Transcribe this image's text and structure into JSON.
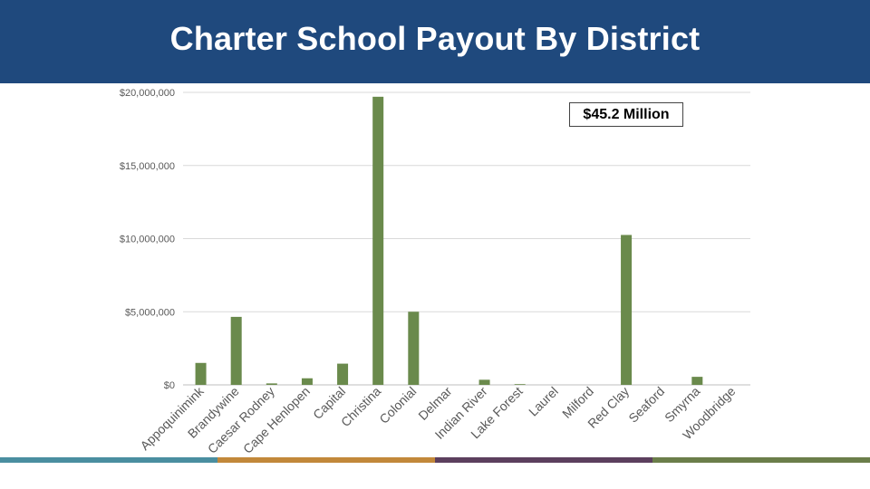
{
  "slide": {
    "title": "Charter School Payout By District",
    "callout": "$45.2 Million",
    "stripe_colors": [
      "#4a8ea0",
      "#c2883a",
      "#5c3f5e",
      "#6b7e4a"
    ]
  },
  "chart_data": {
    "type": "bar",
    "title": "",
    "xlabel": "",
    "ylabel": "",
    "ylim": [
      0,
      20000000
    ],
    "yticks": [
      0,
      5000000,
      10000000,
      15000000,
      20000000
    ],
    "ytick_labels": [
      "$0",
      "$5,000,000",
      "$10,000,000",
      "$15,000,000",
      "$20,000,000"
    ],
    "grid": true,
    "legend": "none",
    "bar_color": "#6a8a4c",
    "categories": [
      "Appoquinimink",
      "Brandywine",
      "Caesar Rodney",
      "Cape Henlopen",
      "Capital",
      "Christina",
      "Colonial",
      "Delmar",
      "Indian River",
      "Lake Forest",
      "Laurel",
      "Milford",
      "Red Clay",
      "Seaford",
      "Smyrna",
      "Woodbridge"
    ],
    "values": [
      1500000,
      4650000,
      100000,
      450000,
      1450000,
      19700000,
      5000000,
      0,
      350000,
      50000,
      0,
      0,
      10250000,
      0,
      550000,
      0
    ]
  }
}
